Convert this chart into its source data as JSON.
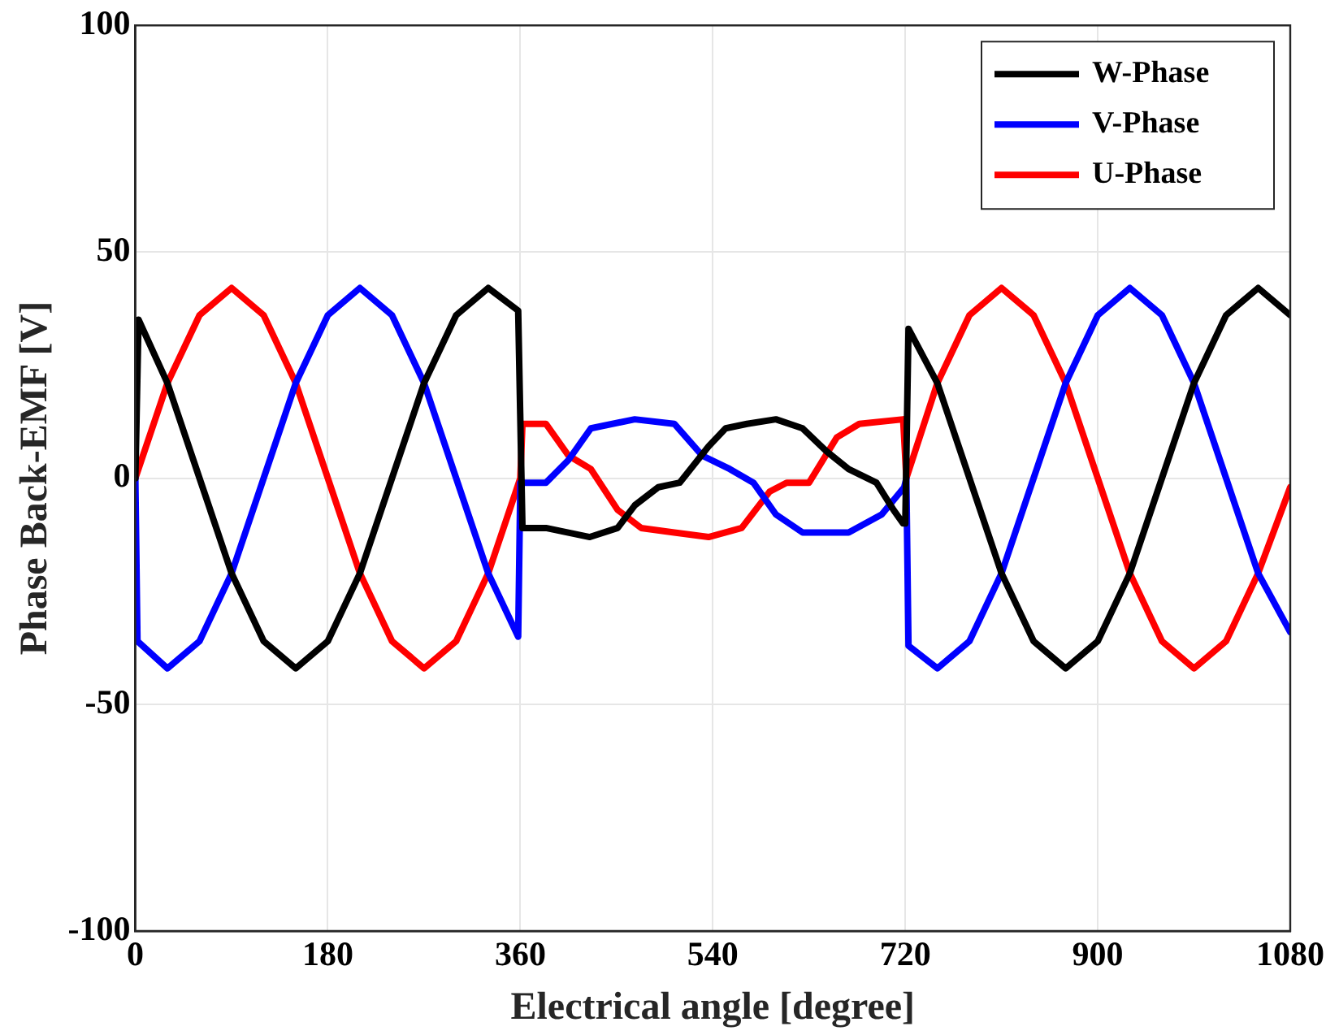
{
  "chart_data": {
    "type": "line",
    "xlabel": "Electrical angle [degree]",
    "ylabel": "Phase Back-EMF [V]",
    "xlim": [
      0,
      1080
    ],
    "xticks": [
      0,
      180,
      360,
      540,
      720,
      900,
      1080
    ],
    "ylim": [
      -100,
      100
    ],
    "yticks": [
      -100,
      -50,
      0,
      50,
      100
    ],
    "grid": true,
    "legend": "top right",
    "marker": "none",
    "line_style": "solid",
    "series": [
      {
        "name": "W-Phase",
        "color": "#000000",
        "x": [
          0,
          3,
          30,
          60,
          90,
          120,
          150,
          180,
          210,
          240,
          270,
          300,
          330,
          358,
          362,
          384,
          425,
          451,
          467,
          489,
          509,
          536,
          552,
          572,
          599,
          624,
          646,
          667,
          693,
          709,
          718,
          720,
          723,
          750,
          780,
          810,
          840,
          870,
          900,
          930,
          960,
          990,
          1020,
          1050,
          1080
        ],
        "values": [
          0,
          35,
          21,
          0,
          -21,
          -36,
          -42,
          -36,
          -21,
          0,
          21,
          36,
          42,
          37,
          -11,
          -11,
          -13,
          -11,
          -6,
          -2,
          -1,
          7,
          11,
          12,
          13,
          11,
          6,
          2,
          -1,
          -7,
          -10,
          -10,
          33,
          21,
          0,
          -21,
          -36,
          -42,
          -36,
          -21,
          0,
          21,
          36,
          42,
          36
        ]
      },
      {
        "name": "V-Phase",
        "color": "#0000ff",
        "x": [
          0,
          2,
          30,
          60,
          90,
          120,
          150,
          180,
          210,
          240,
          270,
          300,
          330,
          358,
          360,
          384,
          405,
          426,
          467,
          504,
          530,
          556,
          578,
          599,
          624,
          667,
          698,
          719,
          721,
          723,
          750,
          780,
          810,
          840,
          870,
          900,
          930,
          960,
          990,
          1020,
          1050,
          1080
        ],
        "values": [
          0,
          -36,
          -42,
          -36,
          -21,
          0,
          21,
          36,
          42,
          36,
          21,
          0,
          -21,
          -35,
          -1,
          -1,
          4,
          11,
          13,
          12,
          5,
          2,
          -1,
          -8,
          -12,
          -12,
          -8,
          -2,
          0,
          -37,
          -42,
          -36,
          -21,
          0,
          21,
          36,
          42,
          36,
          21,
          0,
          -21,
          -34
        ]
      },
      {
        "name": "U-Phase",
        "color": "#ff0000",
        "x": [
          0,
          30,
          60,
          90,
          120,
          150,
          180,
          210,
          240,
          270,
          300,
          330,
          360,
          362,
          384,
          405,
          426,
          451,
          473,
          504,
          536,
          567,
          593,
          609,
          630,
          656,
          677,
          718,
          721,
          750,
          780,
          810,
          840,
          870,
          900,
          930,
          960,
          990,
          1020,
          1050,
          1080
        ],
        "values": [
          0,
          21,
          36,
          42,
          36,
          21,
          0,
          -21,
          -36,
          -42,
          -36,
          -21,
          0,
          12,
          12,
          5,
          2,
          -7,
          -11,
          -12,
          -13,
          -11,
          -3,
          -1,
          -1,
          9,
          12,
          13,
          0,
          21,
          36,
          42,
          36,
          21,
          0,
          -21,
          -36,
          -42,
          -36,
          -21,
          -2
        ]
      }
    ]
  }
}
